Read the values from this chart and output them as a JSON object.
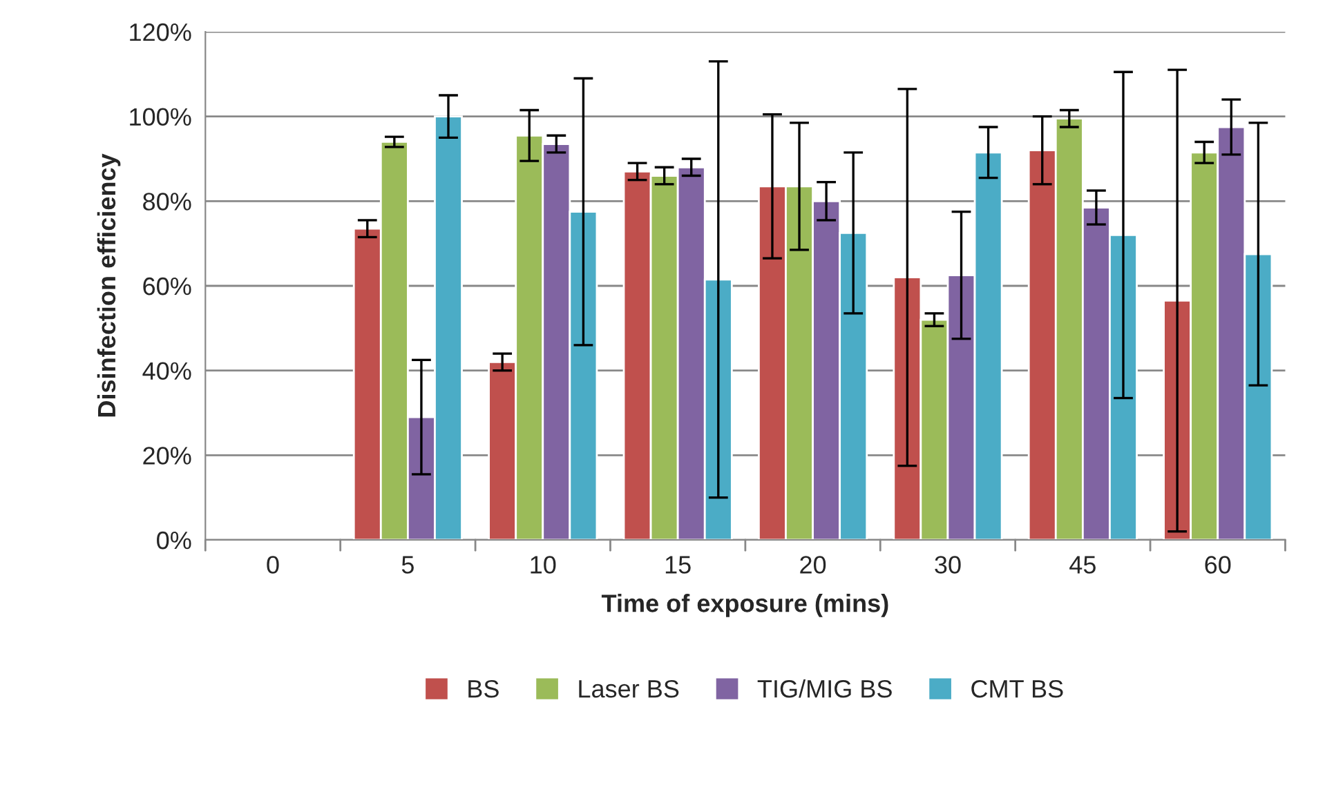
{
  "chart_data": {
    "type": "bar",
    "xlabel": "Time of exposure (mins)",
    "ylabel": "Disinfection efficiency",
    "categories": [
      "0",
      "5",
      "10",
      "15",
      "20",
      "30",
      "45",
      "60"
    ],
    "series": [
      {
        "name": "BS",
        "color": "#c0504d",
        "values": [
          null,
          73.5,
          42,
          87,
          83.5,
          62,
          92,
          56.5
        ],
        "errors": [
          null,
          2,
          2,
          2,
          17,
          44.5,
          8,
          54.5
        ]
      },
      {
        "name": "Laser BS",
        "color": "#9bbb59",
        "values": [
          null,
          94,
          95.5,
          86,
          83.5,
          52,
          99.5,
          91.5
        ],
        "errors": [
          null,
          1.2,
          6,
          2,
          15,
          1.5,
          2,
          2.5
        ]
      },
      {
        "name": "TIG/MIG BS",
        "color": "#8064a2",
        "values": [
          null,
          29,
          93.5,
          88,
          80,
          62.5,
          78.5,
          97.5
        ],
        "errors": [
          null,
          13.5,
          2,
          2,
          4.5,
          15,
          4,
          6.5
        ]
      },
      {
        "name": "CMT BS",
        "color": "#4bacc6",
        "values": [
          null,
          100,
          77.5,
          61.5,
          72.5,
          91.5,
          72,
          67.5
        ],
        "errors": [
          null,
          5,
          31.5,
          51.5,
          19,
          6,
          38.5,
          31
        ]
      }
    ],
    "ylim": [
      0,
      120
    ],
    "yticks": [
      {
        "value": 0,
        "label": "0%"
      },
      {
        "value": 20,
        "label": "20%"
      },
      {
        "value": 40,
        "label": "40%"
      },
      {
        "value": 60,
        "label": "60%"
      },
      {
        "value": 80,
        "label": "80%"
      },
      {
        "value": 100,
        "label": "100%"
      },
      {
        "value": 120,
        "label": "120%"
      }
    ],
    "grid": "y",
    "legend": "bottom"
  }
}
